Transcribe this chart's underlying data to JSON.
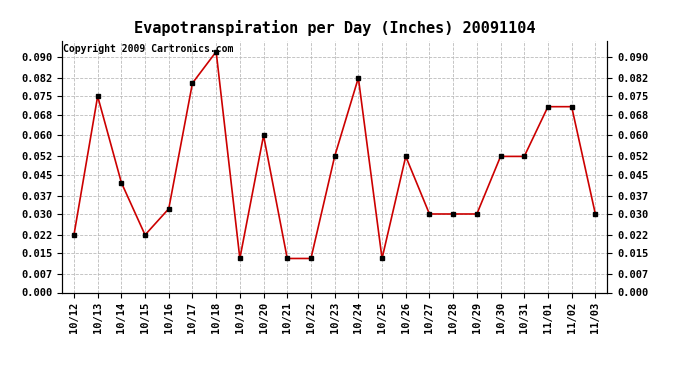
{
  "title": "Evapotranspiration per Day (Inches) 20091104",
  "copyright_text": "Copyright 2009 Cartronics.com",
  "x_labels": [
    "10/12",
    "10/13",
    "10/14",
    "10/15",
    "10/16",
    "10/17",
    "10/18",
    "10/19",
    "10/20",
    "10/21",
    "10/22",
    "10/23",
    "10/24",
    "10/25",
    "10/26",
    "10/27",
    "10/28",
    "10/29",
    "10/30",
    "10/31",
    "11/01",
    "11/02",
    "11/03"
  ],
  "y_values": [
    0.022,
    0.075,
    0.042,
    0.022,
    0.032,
    0.08,
    0.092,
    0.013,
    0.06,
    0.013,
    0.013,
    0.052,
    0.082,
    0.013,
    0.052,
    0.03,
    0.03,
    0.03,
    0.052,
    0.052,
    0.071,
    0.071,
    0.03
  ],
  "line_color": "#cc0000",
  "marker": "s",
  "marker_size": 3,
  "marker_color": "#000000",
  "ylim": [
    0.0,
    0.096
  ],
  "yticks": [
    0.0,
    0.007,
    0.015,
    0.022,
    0.03,
    0.037,
    0.045,
    0.052,
    0.06,
    0.068,
    0.075,
    0.082,
    0.09
  ],
  "grid_color": "#bbbbbb",
  "bg_color": "#ffffff",
  "title_fontsize": 11,
  "copyright_fontsize": 7,
  "tick_fontsize": 7.5
}
